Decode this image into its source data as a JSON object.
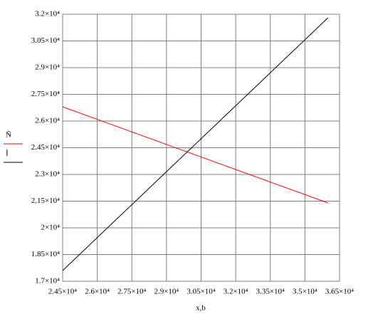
{
  "chart_data": {
    "type": "line",
    "x_label": "x,b",
    "x": [
      24500,
      36000
    ],
    "series": [
      {
        "name": "Ñ",
        "color": "#ff0000",
        "values": [
          26800,
          21400
        ]
      },
      {
        "name": "Ì",
        "color": "#000000",
        "values": [
          17600,
          31800
        ]
      }
    ],
    "xlim": [
      24500,
      36500
    ],
    "xticks": [
      {
        "value": 24500,
        "label": "2.45×10⁴"
      },
      {
        "value": 26000,
        "label": "2.6×10⁴"
      },
      {
        "value": 27500,
        "label": "2.75×10⁴"
      },
      {
        "value": 29000,
        "label": "2.9×10⁴"
      },
      {
        "value": 30500,
        "label": "3.05×10⁴"
      },
      {
        "value": 32000,
        "label": "3.2×10⁴"
      },
      {
        "value": 33500,
        "label": "3.35×10⁴"
      },
      {
        "value": 35000,
        "label": "3.5×10⁴"
      },
      {
        "value": 36500,
        "label": "3.65×10⁴"
      }
    ],
    "ylim": [
      17000,
      32000
    ],
    "yticks": [
      {
        "value": 17000,
        "label": "1.7×10⁴"
      },
      {
        "value": 18500,
        "label": "1.85×10⁴"
      },
      {
        "value": 20000,
        "label": "2×10⁴"
      },
      {
        "value": 21500,
        "label": "2.15×10⁴"
      },
      {
        "value": 23000,
        "label": "2.3×10⁴"
      },
      {
        "value": 24500,
        "label": "2.45×10⁴"
      },
      {
        "value": 26000,
        "label": "2.6×10⁴"
      },
      {
        "value": 27500,
        "label": "2.75×10⁴"
      },
      {
        "value": 29000,
        "label": "2.9×10⁴"
      },
      {
        "value": 30500,
        "label": "3.05×10⁴"
      },
      {
        "value": 32000,
        "label": "3.2×10⁴"
      }
    ],
    "grid": true
  }
}
